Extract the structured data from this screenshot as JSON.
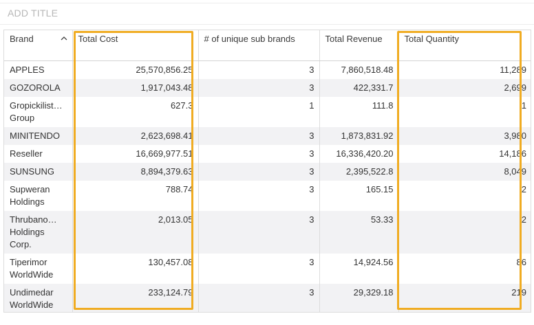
{
  "title_placeholder": "ADD TITLE",
  "highlight_color": "#f0ac22",
  "table": {
    "columns": [
      "Brand",
      "Total Cost",
      "# of unique sub brands",
      "Total Revenue",
      "Total Quantity"
    ],
    "sort_icon": "chevron-up-icon",
    "rows": [
      {
        "brand": "APPLES",
        "cost": "25,570,856.25",
        "subs": "3",
        "revenue": "7,860,518.48",
        "qty": "11,289"
      },
      {
        "brand": "GOZOROLA",
        "cost": "1,917,043.48",
        "subs": "3",
        "revenue": "422,331.7",
        "qty": "2,699"
      },
      {
        "brand_line1": "Gropickilist…",
        "brand_line2": "Group",
        "cost": "627.3",
        "subs": "1",
        "revenue": "111.8",
        "qty": "1"
      },
      {
        "brand": "MINITENDO",
        "cost": "2,623,698.41",
        "subs": "3",
        "revenue": "1,873,831.92",
        "qty": "3,980"
      },
      {
        "brand": "Reseller",
        "cost": "16,669,977.51",
        "subs": "3",
        "revenue": "16,336,420.20",
        "qty": "14,186"
      },
      {
        "brand": "SUNSUNG",
        "cost": "8,894,379.63",
        "subs": "3",
        "revenue": "2,395,522.8",
        "qty": "8,049"
      },
      {
        "brand_line1": "Supweran",
        "brand_line2": "Holdings",
        "cost": "788.74",
        "subs": "3",
        "revenue": "165.15",
        "qty": "2"
      },
      {
        "brand_line1": "Thrubano…",
        "brand_line2": "Holdings",
        "brand_line3": "Corp.",
        "cost": "2,013.05",
        "subs": "3",
        "revenue": "53.33",
        "qty": "2"
      },
      {
        "brand_line1": "Tiperimor",
        "brand_line2": "WorldWide",
        "cost": "130,457.08",
        "subs": "3",
        "revenue": "14,924.56",
        "qty": "86"
      },
      {
        "brand_line1": "Undimedar",
        "brand_line2": "WorldWide",
        "cost": "233,124.79",
        "subs": "3",
        "revenue": "29,329.18",
        "qty": "219"
      }
    ]
  }
}
